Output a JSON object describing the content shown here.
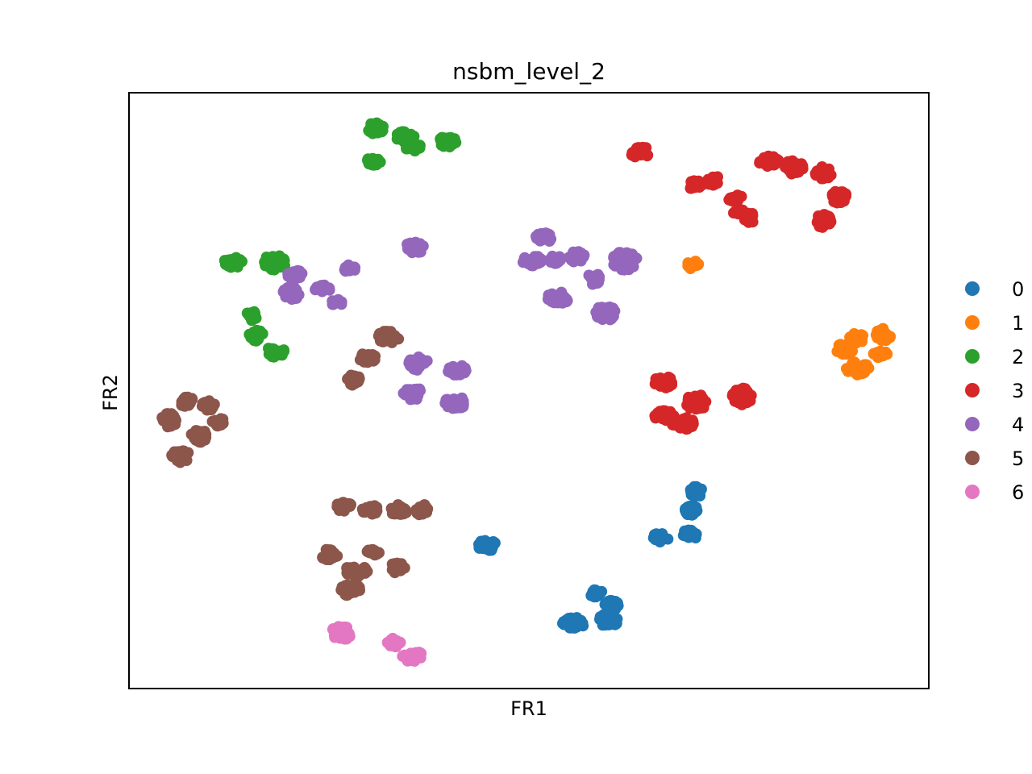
{
  "chart_data": {
    "type": "scatter",
    "title": "nsbm_level_2",
    "xlabel": "FR1",
    "ylabel": "FR2",
    "xlim": [
      0,
      100
    ],
    "ylim": [
      0,
      100
    ],
    "grid": false,
    "ticks": false,
    "legend_position": "right, outside plot",
    "series": [
      {
        "name": "0",
        "color": "#1f77b4",
        "clusters": [
          [
            44.8,
            24.0,
            1.5,
            1.2,
            30
          ],
          [
            55.6,
            11.0,
            1.8,
            1.2,
            30
          ],
          [
            60.0,
            11.5,
            1.6,
            1.4,
            30
          ],
          [
            58.4,
            16.0,
            1.0,
            0.9,
            20
          ],
          [
            60.4,
            14.0,
            1.2,
            1.0,
            20
          ],
          [
            66.4,
            25.3,
            1.3,
            1.0,
            20
          ],
          [
            70.1,
            25.8,
            1.2,
            1.1,
            25
          ],
          [
            70.3,
            30.0,
            1.0,
            1.3,
            30
          ],
          [
            70.9,
            33.0,
            1.0,
            1.2,
            30
          ]
        ]
      },
      {
        "name": "1",
        "color": "#ff7f0e",
        "clusters": [
          [
            70.6,
            71.1,
            1.1,
            0.9,
            20
          ],
          [
            89.5,
            57.0,
            1.5,
            1.2,
            30
          ],
          [
            91.1,
            53.7,
            1.8,
            1.5,
            40
          ],
          [
            94.0,
            56.0,
            1.2,
            1.0,
            20
          ],
          [
            91.0,
            58.8,
            1.2,
            1.2,
            20
          ],
          [
            94.3,
            59.3,
            1.2,
            1.5,
            30
          ]
        ]
      },
      {
        "name": "2",
        "color": "#2ca02c",
        "clusters": [
          [
            30.8,
            94.0,
            1.5,
            1.2,
            30
          ],
          [
            34.5,
            92.5,
            1.5,
            1.3,
            35
          ],
          [
            35.5,
            91.0,
            1.3,
            1.0,
            25
          ],
          [
            39.8,
            91.8,
            1.5,
            1.2,
            30
          ],
          [
            30.6,
            88.5,
            1.1,
            0.9,
            20
          ],
          [
            13.0,
            71.5,
            1.5,
            1.2,
            30
          ],
          [
            18.2,
            71.5,
            1.9,
            1.6,
            45
          ],
          [
            15.1,
            62.5,
            1.1,
            1.3,
            20
          ],
          [
            15.9,
            59.2,
            1.2,
            1.2,
            20
          ],
          [
            18.3,
            56.5,
            1.6,
            1.1,
            25
          ]
        ]
      },
      {
        "name": "3",
        "color": "#d62728",
        "clusters": [
          [
            64.0,
            90.0,
            1.8,
            1.2,
            30
          ],
          [
            70.8,
            84.5,
            1.2,
            1.0,
            20
          ],
          [
            73.3,
            85.2,
            1.5,
            1.0,
            25
          ],
          [
            75.7,
            82.5,
            1.2,
            1.0,
            20
          ],
          [
            76.3,
            80.0,
            1.0,
            0.9,
            15
          ],
          [
            77.6,
            79.0,
            1.0,
            1.0,
            15
          ],
          [
            80.0,
            88.5,
            1.6,
            1.1,
            30
          ],
          [
            83.1,
            87.5,
            1.6,
            1.5,
            30
          ],
          [
            86.8,
            86.5,
            1.3,
            1.4,
            30
          ],
          [
            88.8,
            82.5,
            1.2,
            1.5,
            30
          ],
          [
            86.8,
            78.5,
            1.3,
            1.5,
            30
          ],
          [
            66.9,
            51.5,
            1.5,
            1.4,
            30
          ],
          [
            70.9,
            48.0,
            1.7,
            1.8,
            40
          ],
          [
            76.7,
            49.0,
            1.6,
            1.8,
            40
          ],
          [
            67.0,
            45.7,
            1.6,
            1.2,
            30
          ],
          [
            69.3,
            44.5,
            1.8,
            1.3,
            35
          ]
        ]
      },
      {
        "name": "4",
        "color": "#9467bd",
        "clusters": [
          [
            35.6,
            74.0,
            1.6,
            1.3,
            25
          ],
          [
            27.6,
            70.5,
            1.0,
            0.8,
            15
          ],
          [
            20.7,
            69.5,
            1.2,
            1.0,
            20
          ],
          [
            20.4,
            66.5,
            1.4,
            1.5,
            25
          ],
          [
            24.2,
            67.0,
            1.2,
            1.0,
            20
          ],
          [
            26.0,
            64.8,
            1.0,
            0.8,
            15
          ],
          [
            51.7,
            75.6,
            1.5,
            1.2,
            25
          ],
          [
            50.4,
            71.8,
            1.5,
            1.2,
            25
          ],
          [
            53.2,
            72.0,
            1.1,
            0.9,
            20
          ],
          [
            56.0,
            72.5,
            1.5,
            1.2,
            25
          ],
          [
            58.1,
            68.8,
            1.0,
            1.3,
            20
          ],
          [
            62.0,
            71.8,
            2.0,
            2.0,
            45
          ],
          [
            53.7,
            65.5,
            1.8,
            1.5,
            35
          ],
          [
            59.6,
            63.0,
            1.8,
            1.5,
            35
          ],
          [
            36.2,
            54.5,
            1.6,
            1.5,
            30
          ],
          [
            41.0,
            53.5,
            1.5,
            1.2,
            25
          ],
          [
            35.5,
            49.5,
            1.6,
            1.3,
            30
          ],
          [
            40.8,
            48.0,
            1.8,
            1.3,
            30
          ]
        ]
      },
      {
        "name": "5",
        "color": "#8c564b",
        "clusters": [
          [
            32.4,
            59.0,
            1.8,
            1.3,
            30
          ],
          [
            29.8,
            55.5,
            1.4,
            1.0,
            20
          ],
          [
            28.1,
            51.8,
            1.0,
            1.2,
            20
          ],
          [
            7.1,
            48.2,
            1.2,
            1.1,
            20
          ],
          [
            10.0,
            47.5,
            1.1,
            1.1,
            20
          ],
          [
            5.0,
            45.0,
            1.2,
            1.5,
            30
          ],
          [
            11.2,
            44.7,
            1.0,
            0.9,
            15
          ],
          [
            8.8,
            42.5,
            1.3,
            1.5,
            25
          ],
          [
            6.4,
            39.0,
            1.5,
            1.4,
            25
          ],
          [
            26.9,
            30.5,
            1.3,
            1.2,
            20
          ],
          [
            30.2,
            30.0,
            1.3,
            1.0,
            20
          ],
          [
            33.7,
            30.0,
            1.5,
            1.1,
            25
          ],
          [
            36.5,
            30.0,
            1.1,
            1.3,
            20
          ],
          [
            25.0,
            22.5,
            1.5,
            1.2,
            25
          ],
          [
            30.5,
            23.0,
            1.1,
            0.8,
            15
          ],
          [
            28.4,
            19.7,
            1.9,
            1.2,
            30
          ],
          [
            33.6,
            20.2,
            1.3,
            1.2,
            20
          ],
          [
            27.7,
            16.5,
            1.8,
            1.3,
            30
          ]
        ]
      },
      {
        "name": "6",
        "color": "#e377c2",
        "clusters": [
          [
            26.5,
            9.3,
            1.6,
            1.6,
            35
          ],
          [
            33.1,
            7.7,
            1.4,
            0.9,
            20
          ],
          [
            35.6,
            5.4,
            1.8,
            1.2,
            25
          ]
        ]
      }
    ]
  }
}
